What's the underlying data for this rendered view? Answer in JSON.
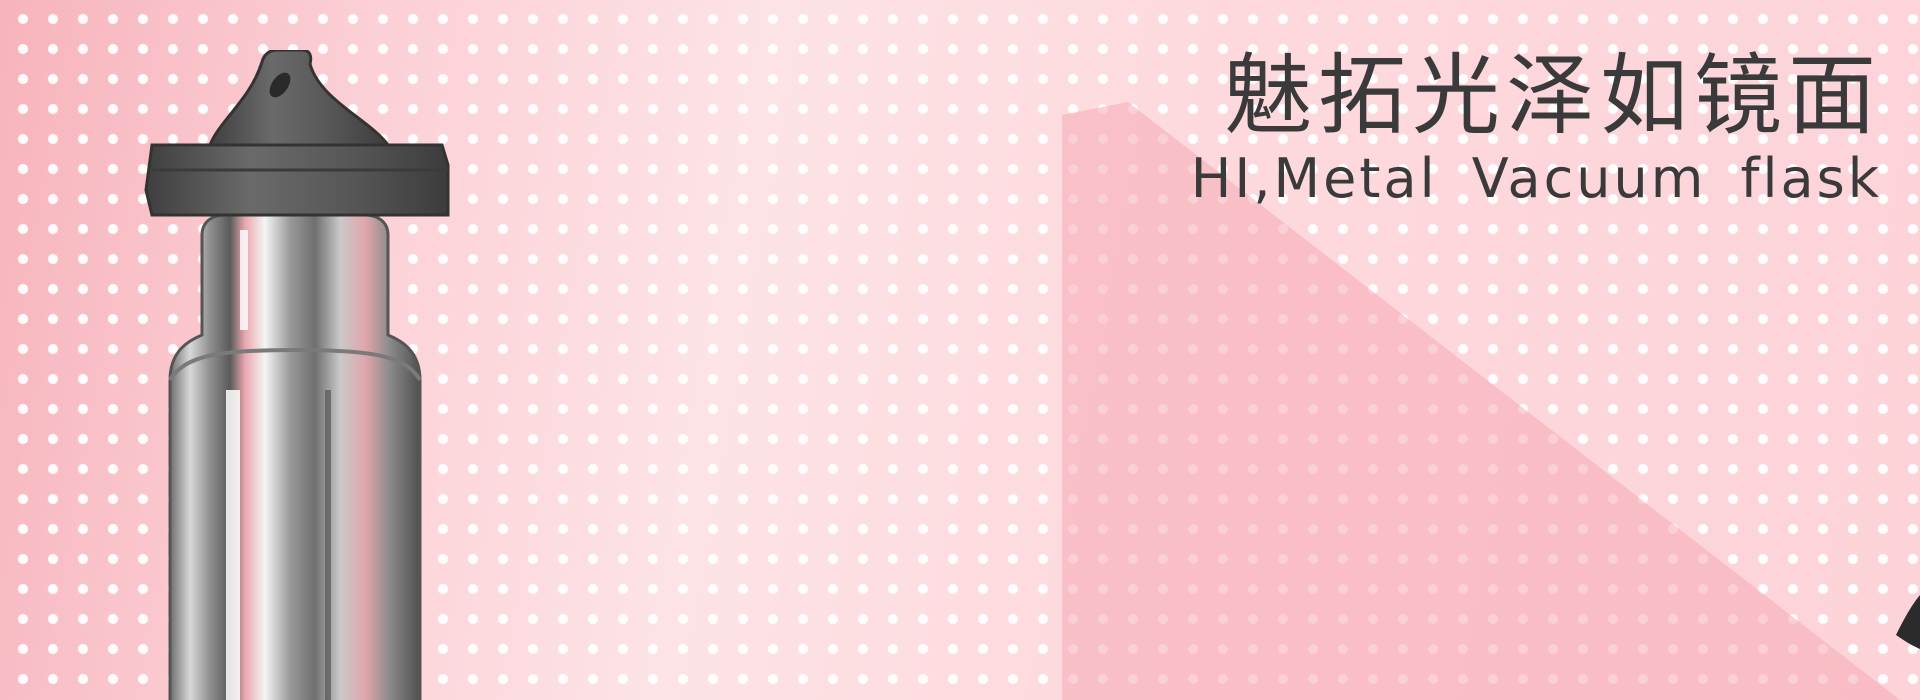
{
  "banner": {
    "headline": "魅拓光泽如镜面",
    "subline": "HI,Metal Vacuum flask"
  },
  "icons": {
    "product": "vacuum-flask-illustration",
    "edge": "partial-dark-shape-icon"
  },
  "colors": {
    "background_pink": "#fcd3d8",
    "shadow_pink": "#f7b3bc",
    "text": "#3a3a3a",
    "cap": "#565656",
    "dots": "#ffffff"
  }
}
